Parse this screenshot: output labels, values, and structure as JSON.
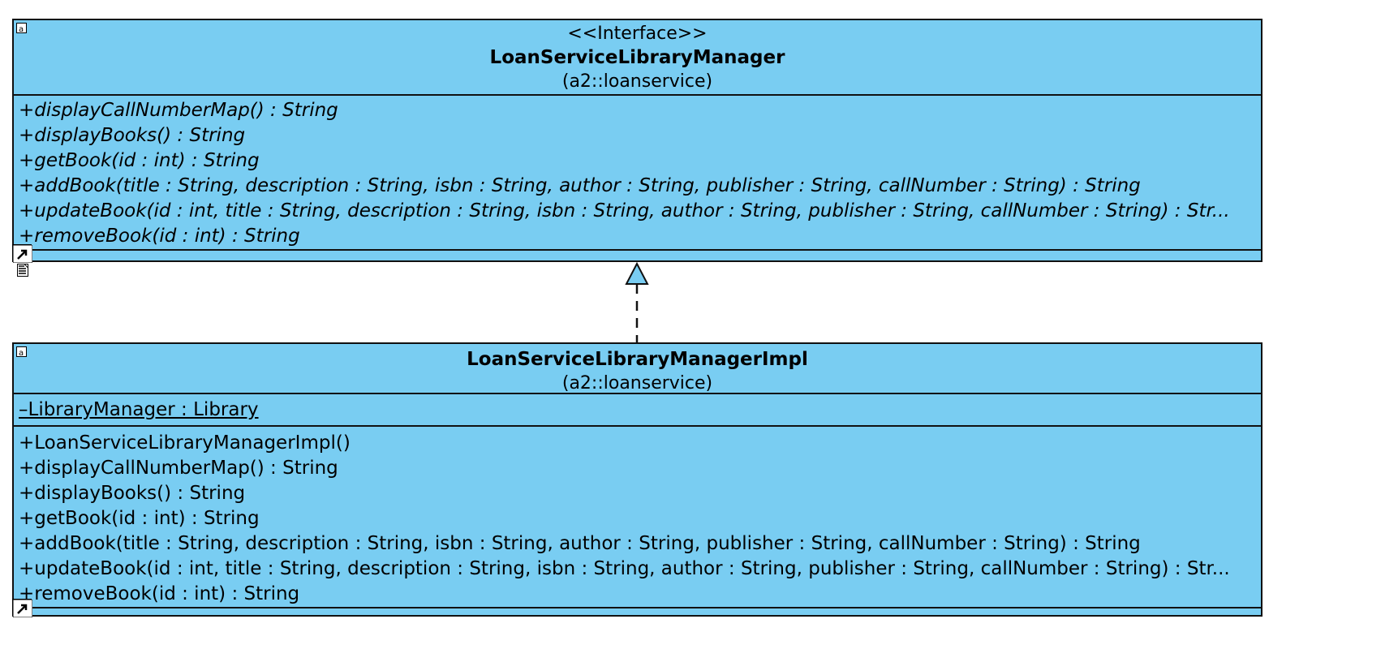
{
  "interface_class": {
    "stereotype": "<<Interface>>",
    "name": "LoanServiceLibraryManager",
    "package": "(a2::loanservice)",
    "operations": [
      "+displayCallNumberMap() : String",
      "+displayBooks() : String",
      "+getBook(id : int) : String",
      "+addBook(title : String, description : String, isbn : String, author : String, publisher : String, callNumber : String) : String",
      "+updateBook(id : int, title : String, description : String, isbn : String, author : String, publisher : String, callNumber : String) : Str...",
      "+removeBook(id : int) : String"
    ]
  },
  "impl_class": {
    "name": "LoanServiceLibraryManagerImpl",
    "package": "(a2::loanservice)",
    "attributes": [
      "–LibraryManager : Library"
    ],
    "operations": [
      "+LoanServiceLibraryManagerImpl()",
      "+displayCallNumberMap() : String",
      "+displayBooks() : String",
      "+getBook(id : int) : String",
      "+addBook(title : String, description : String, isbn : String, author : String, publisher : String, callNumber : String) : String",
      "+updateBook(id : int, title : String, description : String, isbn : String, author : String, publisher : String, callNumber : String) : Str...",
      "+removeBook(id : int) : String"
    ]
  },
  "relationship": {
    "type": "realization"
  },
  "colors": {
    "class_fill": "#79cdf2",
    "border": "#111111"
  },
  "icons": {
    "class_corner": "abstract-marker-icon",
    "shortcut": "shortcut-arrow-icon",
    "note": "note-icon"
  }
}
